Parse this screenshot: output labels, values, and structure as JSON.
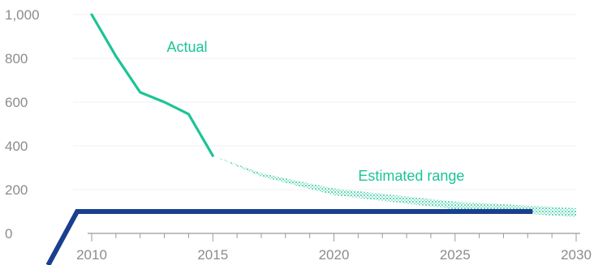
{
  "chart_data": {
    "type": "line",
    "title": "",
    "xlabel": "",
    "ylabel": "",
    "xlim": [
      2010,
      2030
    ],
    "ylim": [
      0,
      1000
    ],
    "grid": false,
    "x_ticks": [
      "2010",
      "2015",
      "2020",
      "2025",
      "2030"
    ],
    "y_ticks": [
      "0",
      "200",
      "400",
      "600",
      "800",
      "1,000"
    ],
    "series": [
      {
        "name": "Actual",
        "color": "#1cc495",
        "points": [
          {
            "x": 2010,
            "y": 1000
          },
          {
            "x": 2011,
            "y": 810
          },
          {
            "x": 2012,
            "y": 645
          },
          {
            "x": 2013,
            "y": 600
          },
          {
            "x": 2014,
            "y": 545
          },
          {
            "x": 2015,
            "y": 355
          }
        ]
      }
    ],
    "range": {
      "name": "Estimated range",
      "color": "#1cc495",
      "upper": [
        {
          "x": 2015,
          "y": 355
        },
        {
          "x": 2017,
          "y": 275
        },
        {
          "x": 2020,
          "y": 205
        },
        {
          "x": 2025,
          "y": 145
        },
        {
          "x": 2030,
          "y": 115
        }
      ],
      "lower": [
        {
          "x": 2015,
          "y": 355
        },
        {
          "x": 2017,
          "y": 260
        },
        {
          "x": 2020,
          "y": 175
        },
        {
          "x": 2025,
          "y": 110
        },
        {
          "x": 2030,
          "y": 75
        }
      ]
    },
    "overlay_line": {
      "color": "#1a3f8f",
      "points": [
        {
          "x": 2008.2,
          "y": -145
        },
        {
          "x": 2009.4,
          "y": 100
        },
        {
          "x": 2028.2,
          "y": 100
        }
      ]
    }
  }
}
